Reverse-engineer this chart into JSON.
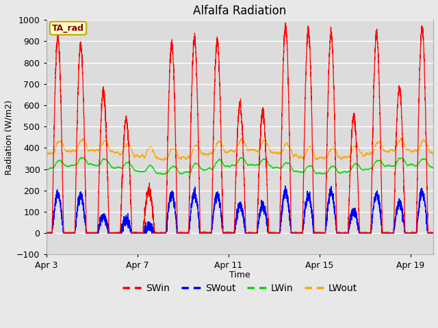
{
  "title": "Alfalfa Radiation",
  "xlabel": "Time",
  "ylabel": "Radiation (W/m2)",
  "ylim": [
    -100,
    1000
  ],
  "tick_labels": [
    "Apr 3",
    "Apr 7",
    "Apr 11",
    "Apr 15",
    "Apr 19"
  ],
  "tick_positions": [
    0,
    4,
    8,
    12,
    16
  ],
  "annotation_text": "TA_rad",
  "annotation_color_bg": "#ffffcc",
  "annotation_color_border": "#bbaa00",
  "annotation_text_color": "#8b0000",
  "fig_bg_color": "#e8e8e8",
  "plot_bg_color": "#f2f2f2",
  "band_color": "#dcdcdc",
  "grid_color": "#e0e0e0",
  "colors": {
    "SWin": "#ff0000",
    "SWout": "#0000ff",
    "LWin": "#00dd00",
    "LWout": "#ffa500"
  },
  "n_days": 17,
  "points_per_day": 288,
  "SWin_peaks": [
    920,
    880,
    660,
    535,
    200,
    890,
    910,
    905,
    600,
    570,
    970,
    950,
    935,
    550,
    930,
    680,
    960
  ],
  "SWout_peaks": [
    185,
    175,
    80,
    60,
    30,
    185,
    185,
    180,
    130,
    130,
    195,
    175,
    190,
    100,
    185,
    140,
    190
  ],
  "LWin_base": 300,
  "LWout_base": 370
}
